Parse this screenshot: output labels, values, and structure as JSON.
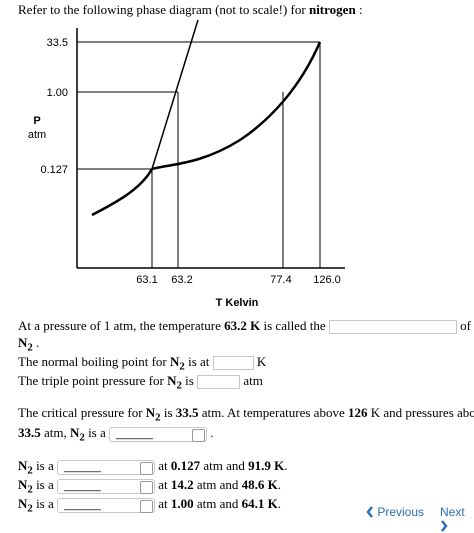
{
  "intro": {
    "text": "Refer to the following phase diagram (not to scale!) for ",
    "bold": "nitrogen",
    "end": " :"
  },
  "diagram": {
    "y_labels": [
      "33.5",
      "1.00",
      "0.127"
    ],
    "p_label": "P",
    "p_unit": "atm",
    "x_labels": [
      "63.1",
      "63.2",
      "77.4",
      "126.0"
    ],
    "x_title": "T Kelvin"
  },
  "lines": [
    [
      {
        "t": "At a pressure of 1 atm, the temperature "
      },
      {
        "t": "63.2 K",
        "b": true
      },
      {
        "t": " is called the "
      },
      {
        "field": "text"
      },
      {
        "t": " of"
      }
    ],
    [
      {
        "t": "N",
        "sub": "2",
        "b": true
      },
      {
        "t": " ."
      }
    ],
    [
      {
        "t": "The normal boiling point for "
      },
      {
        "t": "N",
        "sub": "2",
        "b": true
      },
      {
        "t": " is at "
      },
      {
        "field": "text"
      },
      {
        "t": " K"
      }
    ],
    [
      {
        "t": "The triple point pressure for "
      },
      {
        "t": "N",
        "sub": "2",
        "b": true
      },
      {
        "t": " is "
      },
      {
        "field": "text"
      },
      {
        "t": " atm"
      }
    ],
    [
      {
        "t": "The critical pressure for "
      },
      {
        "t": "N",
        "sub": "2",
        "b": true
      },
      {
        "t": " is "
      },
      {
        "t": "33.5",
        "b": true
      },
      {
        "t": " atm. At temperatures above "
      },
      {
        "t": "126",
        "b": true
      },
      {
        "t": " K and pressures above"
      }
    ],
    [
      {
        "t": "33.5",
        "b": true
      },
      {
        "t": " atm, "
      },
      {
        "t": "N",
        "sub": "2",
        "b": true
      },
      {
        "t": " is a "
      },
      {
        "field": "select",
        "option": "______"
      },
      {
        "t": " ."
      }
    ],
    [
      {
        "t": "N",
        "sub": "2",
        "b": true
      },
      {
        "t": " is a "
      },
      {
        "field": "select",
        "option": "______"
      },
      {
        "t": " at "
      },
      {
        "t": "0.127",
        "b": true
      },
      {
        "t": " atm and "
      },
      {
        "t": "91.9 K",
        "b": true
      },
      {
        "t": "."
      }
    ],
    [
      {
        "t": "N",
        "sub": "2",
        "b": true
      },
      {
        "t": " is a "
      },
      {
        "field": "select",
        "option": "______"
      },
      {
        "t": " at "
      },
      {
        "t": "14.2",
        "b": true
      },
      {
        "t": " atm and "
      },
      {
        "t": "48.6 K",
        "b": true
      },
      {
        "t": "."
      }
    ],
    [
      {
        "t": "N",
        "sub": "2",
        "b": true
      },
      {
        "t": " is a "
      },
      {
        "field": "select",
        "option": "______"
      },
      {
        "t": " at "
      },
      {
        "t": "1.00",
        "b": true
      },
      {
        "t": " atm and "
      },
      {
        "t": "64.1 K",
        "b": true
      },
      {
        "t": "."
      }
    ]
  ],
  "nav": {
    "previous": "Previous",
    "next": "Next"
  }
}
